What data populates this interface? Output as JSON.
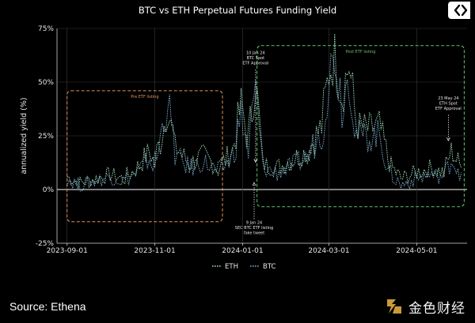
{
  "chart_data": {
    "type": "line",
    "title": "BTC vs ETH Perpetual Futures Funding Yield",
    "xlabel": "",
    "ylabel": "annualized yield (%)",
    "y_ticks": [
      "75%",
      "50%",
      "25%",
      "0%",
      "-25%"
    ],
    "ylim": [
      -25,
      75
    ],
    "x_ticks": [
      "2023-09-01",
      "2023-11-01",
      "2024-01-01",
      "2024-03-01",
      "2024-05-01"
    ],
    "xlim": [
      "2023-08-25",
      "2024-06-05"
    ],
    "grid": true,
    "legend": "bottom-center",
    "series": [
      {
        "name": "ETH",
        "color": "#a9e4bf",
        "points": [
          [
            "2023-09-01",
            6
          ],
          [
            "2023-09-10",
            3
          ],
          [
            "2023-09-20",
            5
          ],
          [
            "2023-10-01",
            7
          ],
          [
            "2023-10-10",
            5
          ],
          [
            "2023-10-20",
            10
          ],
          [
            "2023-10-28",
            18
          ],
          [
            "2023-11-01",
            12
          ],
          [
            "2023-11-10",
            38
          ],
          [
            "2023-11-15",
            20
          ],
          [
            "2023-11-25",
            12
          ],
          [
            "2023-12-05",
            16
          ],
          [
            "2023-12-15",
            10
          ],
          [
            "2023-12-25",
            18
          ],
          [
            "2023-12-31",
            40
          ],
          [
            "2024-01-05",
            22
          ],
          [
            "2024-01-10",
            52
          ],
          [
            "2024-01-15",
            12
          ],
          [
            "2024-01-25",
            10
          ],
          [
            "2024-02-05",
            14
          ],
          [
            "2024-02-15",
            18
          ],
          [
            "2024-02-25",
            30
          ],
          [
            "2024-03-01",
            55
          ],
          [
            "2024-03-05",
            62
          ],
          [
            "2024-03-10",
            45
          ],
          [
            "2024-03-15",
            58
          ],
          [
            "2024-03-20",
            30
          ],
          [
            "2024-03-28",
            28
          ],
          [
            "2024-04-05",
            30
          ],
          [
            "2024-04-12",
            12
          ],
          [
            "2024-04-20",
            5
          ],
          [
            "2024-05-01",
            8
          ],
          [
            "2024-05-10",
            10
          ],
          [
            "2024-05-20",
            8
          ],
          [
            "2024-05-25",
            18
          ],
          [
            "2024-06-01",
            10
          ]
        ]
      },
      {
        "name": "BTC",
        "color": "#7fb3d5",
        "points": [
          [
            "2023-09-01",
            5
          ],
          [
            "2023-09-10",
            2
          ],
          [
            "2023-09-20",
            4
          ],
          [
            "2023-10-01",
            6
          ],
          [
            "2023-10-10",
            4
          ],
          [
            "2023-10-20",
            8
          ],
          [
            "2023-10-28",
            14
          ],
          [
            "2023-11-01",
            10
          ],
          [
            "2023-11-10",
            42
          ],
          [
            "2023-11-15",
            16
          ],
          [
            "2023-11-25",
            10
          ],
          [
            "2023-12-05",
            13
          ],
          [
            "2023-12-15",
            8
          ],
          [
            "2023-12-25",
            15
          ],
          [
            "2023-12-31",
            35
          ],
          [
            "2024-01-05",
            18
          ],
          [
            "2024-01-10",
            47
          ],
          [
            "2024-01-15",
            10
          ],
          [
            "2024-01-25",
            8
          ],
          [
            "2024-02-05",
            11
          ],
          [
            "2024-02-15",
            15
          ],
          [
            "2024-02-25",
            28
          ],
          [
            "2024-03-01",
            50
          ],
          [
            "2024-03-05",
            65
          ],
          [
            "2024-03-10",
            40
          ],
          [
            "2024-03-15",
            54
          ],
          [
            "2024-03-20",
            26
          ],
          [
            "2024-03-28",
            24
          ],
          [
            "2024-04-05",
            26
          ],
          [
            "2024-04-12",
            8
          ],
          [
            "2024-04-20",
            2
          ],
          [
            "2024-05-01",
            5
          ],
          [
            "2024-05-10",
            7
          ],
          [
            "2024-05-20",
            6
          ],
          [
            "2024-05-25",
            14
          ],
          [
            "2024-06-01",
            8
          ]
        ]
      }
    ],
    "regions": [
      {
        "label": "Pre ETF listing",
        "color": "#e0925a",
        "from": "2023-09-01",
        "to": "2023-12-18",
        "ymin": -15,
        "ymax": 46
      },
      {
        "label": "Post ETF listing",
        "color": "#61c26a",
        "from": "2024-01-11",
        "to": "2024-06-03",
        "ymin": -8,
        "ymax": 67
      }
    ],
    "annotations": [
      {
        "lines": [
          "10 Jan 24",
          "BTC Spot",
          "ETF Approval"
        ],
        "date": "2024-01-10",
        "y": 12,
        "text_y": 63,
        "dir": "down"
      },
      {
        "lines": [
          "9 Jan 24",
          "SEC BTC ETF listing",
          "fake tweet"
        ],
        "date": "2024-01-09",
        "y": 4,
        "text_y": -16,
        "dir": "up"
      },
      {
        "lines": [
          "23 May 24",
          "ETH Spot",
          "ETF Approval"
        ],
        "date": "2024-05-23",
        "y": 22,
        "text_y": 42,
        "dir": "down"
      }
    ]
  },
  "footer": {
    "source": "Source: Ethena",
    "brand": "金色财经"
  }
}
